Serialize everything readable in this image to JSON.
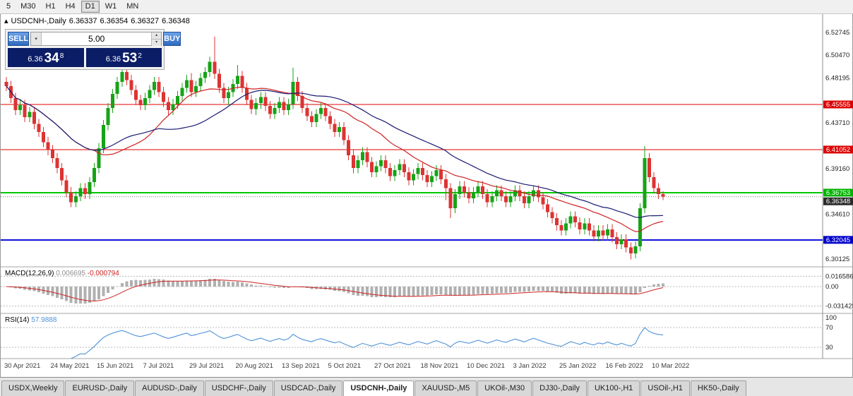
{
  "toolbar": {
    "timeframes": [
      "5",
      "M30",
      "H1",
      "H4",
      "D1",
      "W1",
      "MN"
    ],
    "active": "D1"
  },
  "window": {
    "title_symbol": "USDCNH-,Daily",
    "ohlc": {
      "open": "6.36337",
      "high": "6.36354",
      "low": "6.36327",
      "close": "6.36348"
    }
  },
  "trade_panel": {
    "sell_label": "SELL",
    "buy_label": "BUY",
    "volume": "5.00",
    "sell_price": {
      "big": "6.36",
      "mid": "34",
      "sup": "8"
    },
    "buy_price": {
      "big": "6.36",
      "mid": "53",
      "sup": "2"
    }
  },
  "chart_data": {
    "type": "candlestick",
    "title": "USDCNH-,Daily",
    "up_color": "#17a317",
    "down_color": "#dd3333",
    "ma_fast": {
      "period": 20,
      "color": "#cc2222"
    },
    "ma_slow": {
      "period": 34,
      "color": "#191970"
    },
    "x_labels": [
      "30 Apr 2021",
      "24 May 2021",
      "15 Jun 2021",
      "7 Jul 2021",
      "29 Jul 2021",
      "20 Aug 2021",
      "13 Sep 2021",
      "5 Oct 2021",
      "27 Oct 2021",
      "18 Nov 2021",
      "10 Dec 2021",
      "3 Jan 2022",
      "25 Jan 2022",
      "16 Feb 2022",
      "10 Mar 2022"
    ],
    "x_label_step": 10,
    "y_ticks": [
      "6.52745",
      "6.50470",
      "6.48195",
      "6.43710",
      "6.39160",
      "6.34610",
      "6.30125"
    ],
    "ylim": [
      6.295,
      6.533
    ],
    "hlines": [
      {
        "price": 6.45555,
        "label": "6.45555",
        "line": "#e60000",
        "badge": "#dd0000",
        "width": 1.2
      },
      {
        "price": 6.41052,
        "label": "6.41052",
        "line": "#e60000",
        "badge": "#dd0000",
        "width": 1.2
      },
      {
        "price": 6.36753,
        "label": "6.36753",
        "line": "#00c800",
        "badge": "#00b400",
        "width": 2
      },
      {
        "price": 6.32045,
        "label": "6.32045",
        "line": "#1010dd",
        "badge": "#0000cc",
        "width": 2
      }
    ],
    "current_price": {
      "value": 6.36348,
      "label": "6.36348",
      "badge": "#2b2b2b"
    },
    "candles": [
      [
        6.478,
        6.483,
        6.469,
        6.474
      ],
      [
        6.474,
        6.479,
        6.457,
        6.462
      ],
      [
        6.462,
        6.467,
        6.445,
        6.45
      ],
      [
        6.45,
        6.46,
        6.445,
        6.455
      ],
      [
        6.455,
        6.46,
        6.438,
        6.443
      ],
      [
        6.443,
        6.453,
        6.438,
        6.448
      ],
      [
        6.448,
        6.453,
        6.431,
        6.436
      ],
      [
        6.436,
        6.441,
        6.423,
        6.428
      ],
      [
        6.428,
        6.433,
        6.413,
        6.418
      ],
      [
        6.418,
        6.423,
        6.405,
        6.41
      ],
      [
        6.41,
        6.415,
        6.397,
        6.402
      ],
      [
        6.402,
        6.407,
        6.387,
        6.392
      ],
      [
        6.392,
        6.397,
        6.375,
        6.38
      ],
      [
        6.38,
        6.385,
        6.363,
        6.368
      ],
      [
        6.368,
        6.373,
        6.353,
        6.358
      ],
      [
        6.358,
        6.369,
        6.353,
        6.364
      ],
      [
        6.364,
        6.377,
        6.359,
        6.372
      ],
      [
        6.372,
        6.377,
        6.361,
        6.366
      ],
      [
        6.366,
        6.383,
        6.361,
        6.378
      ],
      [
        6.378,
        6.397,
        6.373,
        6.392
      ],
      [
        6.392,
        6.417,
        6.387,
        6.412
      ],
      [
        6.412,
        6.44,
        6.407,
        6.435
      ],
      [
        6.435,
        6.457,
        6.43,
        6.452
      ],
      [
        6.452,
        6.471,
        6.447,
        6.466
      ],
      [
        6.466,
        6.483,
        6.461,
        6.478
      ],
      [
        6.478,
        6.493,
        6.473,
        6.488
      ],
      [
        6.488,
        6.493,
        6.475,
        6.48
      ],
      [
        6.48,
        6.485,
        6.465,
        6.47
      ],
      [
        6.47,
        6.475,
        6.455,
        6.46
      ],
      [
        6.46,
        6.465,
        6.45,
        6.455
      ],
      [
        6.455,
        6.467,
        6.45,
        6.462
      ],
      [
        6.462,
        6.475,
        6.457,
        6.47
      ],
      [
        6.47,
        6.483,
        6.465,
        6.478
      ],
      [
        6.478,
        6.483,
        6.463,
        6.468
      ],
      [
        6.468,
        6.473,
        6.453,
        6.458
      ],
      [
        6.458,
        6.463,
        6.445,
        6.45
      ],
      [
        6.45,
        6.461,
        6.445,
        6.456
      ],
      [
        6.456,
        6.469,
        6.451,
        6.464
      ],
      [
        6.464,
        6.477,
        6.459,
        6.472
      ],
      [
        6.472,
        6.485,
        6.467,
        6.48
      ],
      [
        6.48,
        6.487,
        6.463,
        6.468
      ],
      [
        6.468,
        6.479,
        6.463,
        6.474
      ],
      [
        6.474,
        6.487,
        6.469,
        6.482
      ],
      [
        6.482,
        6.493,
        6.477,
        6.488
      ],
      [
        6.488,
        6.503,
        6.483,
        6.498
      ],
      [
        6.498,
        6.523,
        6.481,
        6.486
      ],
      [
        6.486,
        6.491,
        6.467,
        6.472
      ],
      [
        6.472,
        6.477,
        6.457,
        6.462
      ],
      [
        6.462,
        6.473,
        6.455,
        6.468
      ],
      [
        6.468,
        6.481,
        6.463,
        6.476
      ],
      [
        6.476,
        6.495,
        6.471,
        6.484
      ],
      [
        6.484,
        6.489,
        6.467,
        6.472
      ],
      [
        6.472,
        6.477,
        6.455,
        6.46
      ],
      [
        6.46,
        6.465,
        6.446,
        6.451
      ],
      [
        6.451,
        6.462,
        6.445,
        6.457
      ],
      [
        6.457,
        6.468,
        6.451,
        6.463
      ],
      [
        6.463,
        6.468,
        6.449,
        6.454
      ],
      [
        6.454,
        6.459,
        6.441,
        6.446
      ],
      [
        6.446,
        6.457,
        6.441,
        6.452
      ],
      [
        6.452,
        6.463,
        6.447,
        6.458
      ],
      [
        6.458,
        6.463,
        6.445,
        6.45
      ],
      [
        6.45,
        6.461,
        6.445,
        6.456
      ],
      [
        6.456,
        6.492,
        6.451,
        6.478
      ],
      [
        6.478,
        6.483,
        6.459,
        6.464
      ],
      [
        6.464,
        6.469,
        6.447,
        6.452
      ],
      [
        6.452,
        6.457,
        6.439,
        6.444
      ],
      [
        6.444,
        6.449,
        6.433,
        6.438
      ],
      [
        6.438,
        6.451,
        6.433,
        6.446
      ],
      [
        6.446,
        6.457,
        6.441,
        6.452
      ],
      [
        6.452,
        6.457,
        6.439,
        6.444
      ],
      [
        6.444,
        6.449,
        6.431,
        6.436
      ],
      [
        6.436,
        6.441,
        6.423,
        6.428
      ],
      [
        6.428,
        6.438,
        6.423,
        6.433
      ],
      [
        6.433,
        6.438,
        6.415,
        6.42
      ],
      [
        6.42,
        6.425,
        6.4,
        6.405
      ],
      [
        6.405,
        6.41,
        6.387,
        6.392
      ],
      [
        6.392,
        6.405,
        6.387,
        6.4
      ],
      [
        6.4,
        6.413,
        6.395,
        6.408
      ],
      [
        6.408,
        6.413,
        6.393,
        6.398
      ],
      [
        6.398,
        6.403,
        6.383,
        6.388
      ],
      [
        6.388,
        6.399,
        6.383,
        6.394
      ],
      [
        6.394,
        6.405,
        6.389,
        6.4
      ],
      [
        6.4,
        6.405,
        6.387,
        6.392
      ],
      [
        6.392,
        6.397,
        6.379,
        6.384
      ],
      [
        6.384,
        6.395,
        6.379,
        6.39
      ],
      [
        6.39,
        6.401,
        6.385,
        6.396
      ],
      [
        6.396,
        6.401,
        6.383,
        6.388
      ],
      [
        6.388,
        6.393,
        6.375,
        6.38
      ],
      [
        6.38,
        6.391,
        6.375,
        6.386
      ],
      [
        6.386,
        6.397,
        6.381,
        6.392
      ],
      [
        6.392,
        6.397,
        6.38,
        6.385
      ],
      [
        6.385,
        6.39,
        6.373,
        6.378
      ],
      [
        6.378,
        6.389,
        6.373,
        6.384
      ],
      [
        6.384,
        6.395,
        6.379,
        6.39
      ],
      [
        6.39,
        6.395,
        6.376,
        6.381
      ],
      [
        6.381,
        6.386,
        6.36,
        6.372
      ],
      [
        6.372,
        6.377,
        6.342,
        6.352
      ],
      [
        6.352,
        6.371,
        6.347,
        6.366
      ],
      [
        6.366,
        6.379,
        6.361,
        6.374
      ],
      [
        6.374,
        6.379,
        6.363,
        6.368
      ],
      [
        6.368,
        6.373,
        6.357,
        6.362
      ],
      [
        6.362,
        6.373,
        6.357,
        6.368
      ],
      [
        6.368,
        6.379,
        6.363,
        6.374
      ],
      [
        6.374,
        6.379,
        6.361,
        6.366
      ],
      [
        6.366,
        6.371,
        6.353,
        6.358
      ],
      [
        6.358,
        6.369,
        6.353,
        6.364
      ],
      [
        6.364,
        6.375,
        6.359,
        6.37
      ],
      [
        6.37,
        6.375,
        6.359,
        6.364
      ],
      [
        6.364,
        6.369,
        6.353,
        6.358
      ],
      [
        6.358,
        6.369,
        6.353,
        6.364
      ],
      [
        6.364,
        6.375,
        6.359,
        6.37
      ],
      [
        6.37,
        6.375,
        6.359,
        6.364
      ],
      [
        6.364,
        6.369,
        6.352,
        6.357
      ],
      [
        6.357,
        6.369,
        6.352,
        6.364
      ],
      [
        6.364,
        6.375,
        6.359,
        6.37
      ],
      [
        6.37,
        6.375,
        6.358,
        6.363
      ],
      [
        6.363,
        6.368,
        6.351,
        6.356
      ],
      [
        6.356,
        6.361,
        6.343,
        6.348
      ],
      [
        6.348,
        6.353,
        6.337,
        6.342
      ],
      [
        6.342,
        6.347,
        6.33,
        6.335
      ],
      [
        6.335,
        6.34,
        6.325,
        6.33
      ],
      [
        6.33,
        6.342,
        6.325,
        6.337
      ],
      [
        6.337,
        6.349,
        6.332,
        6.344
      ],
      [
        6.344,
        6.349,
        6.333,
        6.338
      ],
      [
        6.338,
        6.343,
        6.326,
        6.331
      ],
      [
        6.331,
        6.342,
        6.326,
        6.337
      ],
      [
        6.337,
        6.342,
        6.325,
        6.33
      ],
      [
        6.33,
        6.335,
        6.319,
        6.324
      ],
      [
        6.324,
        6.335,
        6.319,
        6.33
      ],
      [
        6.33,
        6.335,
        6.32,
        6.325
      ],
      [
        6.325,
        6.336,
        6.32,
        6.331
      ],
      [
        6.331,
        6.336,
        6.318,
        6.323
      ],
      [
        6.323,
        6.328,
        6.311,
        6.316
      ],
      [
        6.316,
        6.326,
        6.311,
        6.321
      ],
      [
        6.321,
        6.326,
        6.308,
        6.313
      ],
      [
        6.313,
        6.318,
        6.301,
        6.307
      ],
      [
        6.307,
        6.319,
        6.302,
        6.314
      ],
      [
        6.314,
        6.357,
        6.309,
        6.352
      ],
      [
        6.352,
        6.414,
        6.347,
        6.402
      ],
      [
        6.402,
        6.407,
        6.378,
        6.383
      ],
      [
        6.383,
        6.388,
        6.367,
        6.372
      ],
      [
        6.372,
        6.377,
        6.361,
        6.366
      ],
      [
        6.366,
        6.369,
        6.36,
        6.3635
      ]
    ],
    "macd": {
      "name": "MACD(12,26,9)",
      "value_main": "0.006695",
      "value_signal": "-0.000794",
      "hist_color": "#b0b0b0",
      "signal_color": "#cc2222",
      "scale": [
        {
          "v": 0.016586,
          "label": "0.016586"
        },
        {
          "v": 0.0,
          "label": "0.00"
        },
        {
          "v": -0.031425,
          "label": "-0.031425"
        }
      ]
    },
    "rsi": {
      "name": "RSI(14)",
      "value": "57.9888",
      "line_color": "#4f92d8",
      "scale_labels": [
        "100",
        "70",
        "30"
      ],
      "levels": [
        70,
        30
      ]
    }
  },
  "tabs": {
    "items": [
      "USDX,Weekly",
      "EURUSD-,Daily",
      "AUDUSD-,Daily",
      "USDCHF-,Daily",
      "USDCAD-,Daily",
      "USDCNH-,Daily",
      "XAUUSD-,M5",
      "UKOil-,M30",
      "DJ30-,Daily",
      "UK100-,H1",
      "USOil-,H1",
      "HK50-,Daily"
    ],
    "active_index": 5
  }
}
